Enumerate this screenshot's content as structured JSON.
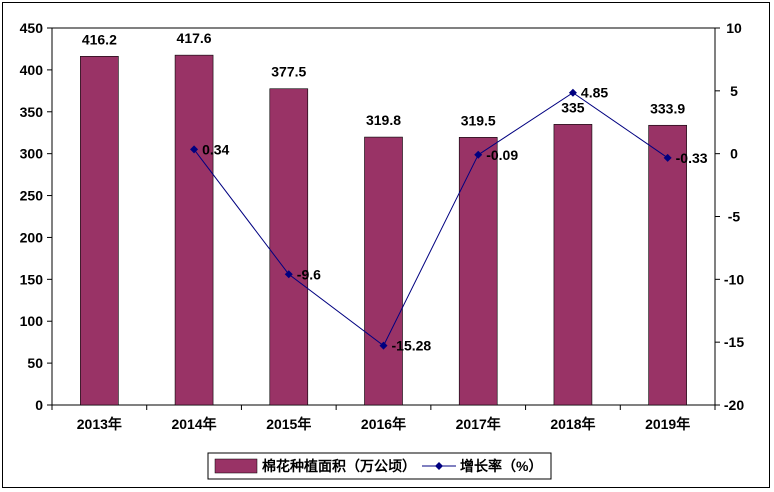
{
  "chart_data": {
    "type": "bar",
    "categories": [
      "2013年",
      "2014年",
      "2015年",
      "2016年",
      "2017年",
      "2018年",
      "2019年"
    ],
    "series": [
      {
        "name": "棉花种植面积（万公顷）",
        "kind": "bar",
        "axis": "left",
        "color": "#993366",
        "values": [
          416.2,
          417.6,
          377.5,
          319.8,
          319.5,
          335,
          333.9
        ],
        "labels": [
          "416.2",
          "417.6",
          "377.5",
          "319.8",
          "319.5",
          "335",
          "333.9"
        ]
      },
      {
        "name": "增长率（%）",
        "kind": "line",
        "axis": "right",
        "color": "#000080",
        "values": [
          null,
          0.34,
          -9.6,
          -15.28,
          -0.09,
          4.85,
          -0.33
        ],
        "labels": [
          null,
          "0.34",
          "-9.6",
          "-15.28",
          "-0.09",
          "4.85",
          "-0.33"
        ]
      }
    ],
    "ylim": [
      0,
      450
    ],
    "yticks": [
      "0",
      "50",
      "100",
      "150",
      "200",
      "250",
      "300",
      "350",
      "400",
      "450"
    ],
    "y2lim": [
      -20,
      10
    ],
    "y2ticks": [
      "-20",
      "-15",
      "-10",
      "-5",
      "0",
      "5",
      "10"
    ],
    "grid": false,
    "legend": "bottom"
  }
}
